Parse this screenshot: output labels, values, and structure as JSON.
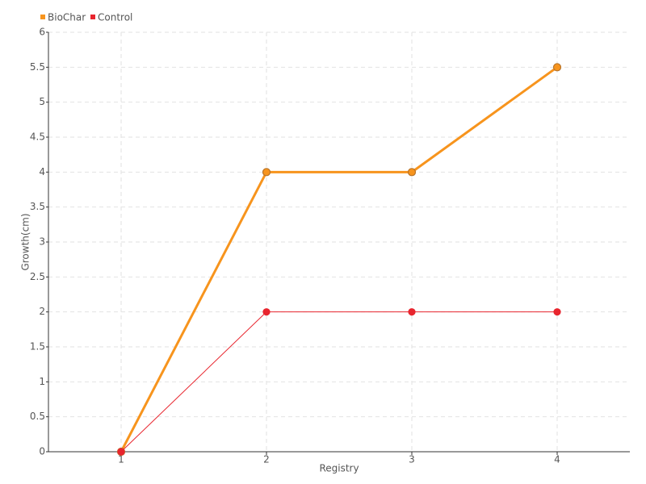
{
  "chart_data": {
    "type": "line",
    "x_label": "Registry",
    "y_label": "Growth(cm)",
    "categories": [
      "1",
      "2",
      "3",
      "4"
    ],
    "series": [
      {
        "name": "BioChar",
        "color": "#f7941d",
        "values": [
          0,
          4,
          4,
          5.5
        ]
      },
      {
        "name": "Control",
        "color": "#e8252e",
        "values": [
          0,
          2,
          2,
          2
        ]
      }
    ],
    "ylim": [
      0,
      6
    ],
    "yticks": [
      0,
      0.5,
      1,
      1.5,
      2,
      2.5,
      3,
      3.5,
      4,
      4.5,
      5,
      5.5,
      6
    ],
    "grid": true,
    "legend": "top-left"
  }
}
